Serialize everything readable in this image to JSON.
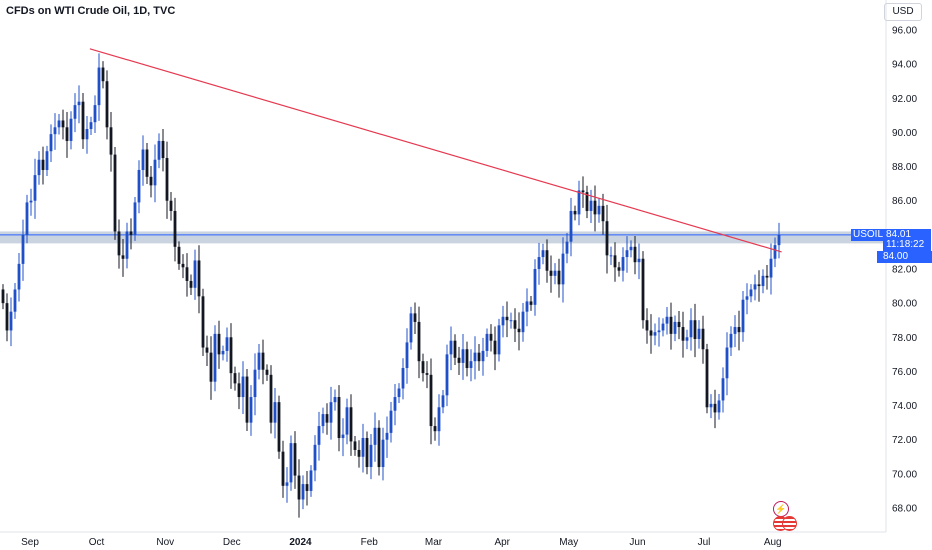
{
  "header": {
    "title": "CFDs on WTI Crude Oil, 1D, TVC",
    "currency": "USD"
  },
  "price_tags": {
    "symbol": "USOIL",
    "last": "84.01",
    "countdown": "11:18:22",
    "level": "84.00"
  },
  "icons": {
    "event": "lightning-icon",
    "flag": "us-flag-icon"
  },
  "colors": {
    "bull": "#2050c8",
    "bear": "#131722",
    "trendline": "#e53950",
    "zone": "#b8c4d6",
    "accent": "#2962ff"
  },
  "chart_data": {
    "type": "candlestick",
    "ylim": [
      67,
      97
    ],
    "yticks": [
      "96.00",
      "94.00",
      "92.00",
      "90.00",
      "88.00",
      "86.00",
      "84.00",
      "82.00",
      "80.00",
      "78.00",
      "76.00",
      "74.00",
      "72.00",
      "70.00",
      "68.00"
    ],
    "xticks": [
      {
        "label": "Sep",
        "date": "2023-09-01"
      },
      {
        "label": "Oct",
        "date": "2023-10-01"
      },
      {
        "label": "Nov",
        "date": "2023-11-01"
      },
      {
        "label": "Dec",
        "date": "2023-12-01"
      },
      {
        "label": "2024",
        "date": "2024-01-01",
        "bold": true
      },
      {
        "label": "Feb",
        "date": "2024-02-01"
      },
      {
        "label": "Mar",
        "date": "2024-03-01"
      },
      {
        "label": "Apr",
        "date": "2024-04-01"
      },
      {
        "label": "May",
        "date": "2024-05-01"
      },
      {
        "label": "Jun",
        "date": "2024-06-01"
      },
      {
        "label": "Jul",
        "date": "2024-07-01"
      },
      {
        "label": "Aug",
        "date": "2024-08-01"
      }
    ],
    "trendline": {
      "from": {
        "date": "2023-09-28",
        "price": 94.9
      },
      "to": {
        "date": "2024-08-05",
        "price": 83.0
      }
    },
    "horizontal_zone": {
      "top": 84.2,
      "bottom": 83.5,
      "level": 84.0
    },
    "closes": [
      80.0,
      78.4,
      79.5,
      80.8,
      82.3,
      84.0,
      85.9,
      86.0,
      87.5,
      88.4,
      87.8,
      88.9,
      89.9,
      90.3,
      90.7,
      90.3,
      89.5,
      90.8,
      91.6,
      91.8,
      89.6,
      90.2,
      90.6,
      91.6,
      93.8,
      93.0,
      90.3,
      88.7,
      84.2,
      82.8,
      82.6,
      84.2,
      84.0,
      85.9,
      87.8,
      89.0,
      87.4,
      86.9,
      88.4,
      89.5,
      88.5,
      86.0,
      85.4,
      83.3,
      82.3,
      82.1,
      81.3,
      80.9,
      82.5,
      80.4,
      77.4,
      77.1,
      75.4,
      78.2,
      77.0,
      77.2,
      78.0,
      75.9,
      75.3,
      74.5,
      75.7,
      73.0,
      74.5,
      76.1,
      77.1,
      76.1,
      75.8,
      73.0,
      74.2,
      71.3,
      69.3,
      69.5,
      71.8,
      69.9,
      68.5,
      69.4,
      69.0,
      70.2,
      71.7,
      72.8,
      73.5,
      73.0,
      74.2,
      74.5,
      72.1,
      72.3,
      73.9,
      71.9,
      71.4,
      71.0,
      72.1,
      70.4,
      71.7,
      72.7,
      70.4,
      72.0,
      72.4,
      73.7,
      74.5,
      75.0,
      76.2,
      77.7,
      79.4,
      78.9,
      76.6,
      75.9,
      75.8,
      72.8,
      72.5,
      73.9,
      74.6,
      77.0,
      77.8,
      76.8,
      76.5,
      77.3,
      76.2,
      76.6,
      77.1,
      76.6,
      77.2,
      78.2,
      77.8,
      77.0,
      78.7,
      79.2,
      79.0,
      79.0,
      78.5,
      78.3,
      79.5,
      80.1,
      79.9,
      82.0,
      82.7,
      83.1,
      81.9,
      81.6,
      81.9,
      81.1,
      82.9,
      83.6,
      85.4,
      85.2,
      86.6,
      86.5,
      85.4,
      86.0,
      85.2,
      85.7,
      84.8,
      82.8,
      82.8,
      82.1,
      81.9,
      82.7,
      83.1,
      83.3,
      82.4,
      82.6,
      79.0,
      78.4,
      78.1,
      78.3,
      78.4,
      78.8,
      79.2,
      78.2,
      78.9,
      78.6,
      77.8,
      78.0,
      79.0,
      77.9,
      78.5,
      77.3,
      73.9,
      74.1,
      73.6,
      74.3,
      75.6,
      77.4,
      78.2,
      78.6,
      78.3,
      80.2,
      80.4,
      80.8,
      81.1,
      81.0,
      81.6,
      81.5,
      82.6,
      83.4,
      84.0
    ]
  }
}
